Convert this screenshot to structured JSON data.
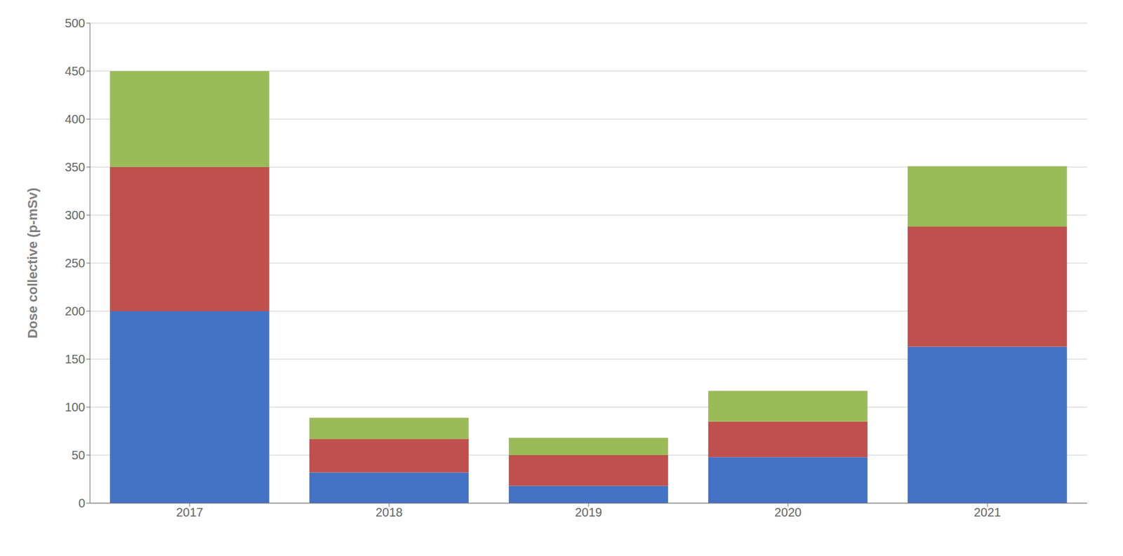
{
  "chart_data": {
    "type": "bar",
    "stacked": true,
    "ylabel": "Dose collective (p-mSv)",
    "categories": [
      "2017",
      "2018",
      "2019",
      "2020",
      "2021"
    ],
    "series": [
      {
        "color": "#4472C4",
        "values": [
          200,
          32,
          18,
          48,
          163
        ]
      },
      {
        "color": "#C0504D",
        "values": [
          150,
          35,
          32,
          37,
          125
        ]
      },
      {
        "color": "#9BBB59",
        "values": [
          100,
          22,
          18,
          32,
          63
        ]
      }
    ],
    "ylim": [
      0,
      500
    ],
    "yticks": [
      0,
      50,
      100,
      150,
      200,
      250,
      300,
      350,
      400,
      450,
      500
    ],
    "grid": true
  }
}
